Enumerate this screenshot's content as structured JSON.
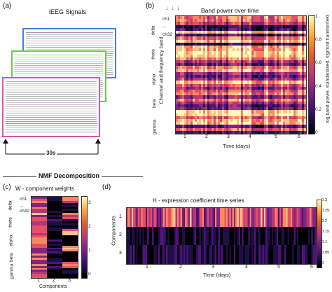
{
  "panel_a": {
    "label": "(a)",
    "title": "iEEG Signals",
    "duration": "30s"
  },
  "panel_b": {
    "label": "(b)",
    "title": "Band power over time",
    "ylabel": "Channel and frequency band",
    "xlabel": "Time (days)",
    "cbar_label": "log band power, standardised, sigmoid transformed",
    "bands": [
      "delta",
      "theta",
      "alpha",
      "beta",
      "gamma"
    ],
    "channels": [
      "ch1",
      "...",
      "ch32"
    ],
    "xticks": [
      "1",
      "2",
      "3",
      "4",
      "5",
      "6"
    ],
    "cbar_ticks": [
      "1",
      "0.8",
      "0.6",
      "0.4",
      "0.2",
      "0"
    ],
    "arrow_colors": [
      "#e0409a",
      "#3aa832",
      "#3b6fd6"
    ]
  },
  "section_title": "NMF Decomposition",
  "panel_c": {
    "label": "(c)",
    "title": "W - component weights",
    "xlabel": "Components",
    "bands": [
      "delta",
      "theta",
      "alpha",
      "beta",
      "gamma"
    ],
    "channels": [
      "ch1",
      "...",
      "ch32"
    ],
    "xticks": [
      "1",
      "2",
      "3"
    ],
    "cbar_ticks": [
      "3",
      "2",
      "1",
      "0"
    ]
  },
  "panel_d": {
    "label": "(d)",
    "title": "H - expression coefficient time series",
    "ylabel": "Components",
    "xlabel": "Time (days)",
    "yticks": [
      "1",
      "2",
      "3"
    ],
    "xticks": [
      "1",
      "2",
      "3",
      "4",
      "5",
      "6"
    ],
    "cbar_ticks": [
      "0.3",
      "0.25",
      "0.2",
      "0.15",
      "0.1",
      "0.05",
      "0"
    ]
  },
  "colors": {
    "window_blue": "#4a7fd6",
    "window_green": "#6cc94a",
    "window_pink": "#e050b0"
  }
}
